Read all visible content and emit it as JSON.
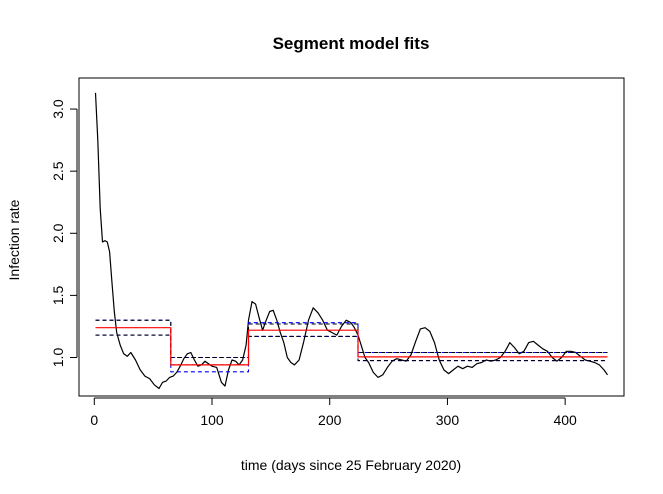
{
  "chart_data": {
    "type": "line",
    "title": "Segment model fits",
    "xlabel": "time (days since 25 February 2020)",
    "ylabel": "Infection rate",
    "xlim": [
      -13,
      450
    ],
    "ylim": [
      0.69,
      3.25
    ],
    "xticks": [
      "0",
      "100",
      "200",
      "300",
      "400"
    ],
    "yticks": [
      "1.0",
      "1.5",
      "2.0",
      "2.5",
      "3.0"
    ],
    "grid": false,
    "colors": {
      "observed": "#000000",
      "fit": "#ff0000",
      "interval": "#0000ff",
      "inner_interval": "#000000"
    },
    "series": [
      {
        "style": "solid-black",
        "x": [
          1,
          3,
          5,
          7,
          9,
          11,
          13,
          15,
          17,
          19,
          22,
          25,
          28,
          31,
          35,
          39,
          43,
          47,
          51,
          55,
          58,
          61,
          64,
          67,
          70,
          73,
          76,
          79,
          82,
          85,
          88,
          91,
          94,
          97,
          100,
          104,
          108,
          111,
          114,
          117,
          120,
          123,
          126,
          129,
          131,
          134,
          137,
          140,
          143,
          146,
          149,
          152,
          155,
          158,
          161,
          164,
          167,
          170,
          174,
          178,
          182,
          186,
          190,
          194,
          198,
          202,
          206,
          210,
          214,
          218,
          221,
          224,
          227,
          230,
          233,
          237,
          241,
          245,
          249,
          253,
          257,
          261,
          265,
          269,
          273,
          277,
          281,
          285,
          289,
          293,
          297,
          301,
          305,
          309,
          313,
          317,
          321,
          325,
          329,
          333,
          337,
          341,
          345,
          349,
          353,
          357,
          361,
          365,
          369,
          373,
          377,
          381,
          385,
          389,
          393,
          397,
          401,
          405,
          409,
          413,
          417,
          421,
          425,
          429,
          433,
          436
        ],
        "y": [
          3.13,
          2.75,
          2.2,
          1.93,
          1.94,
          1.93,
          1.85,
          1.6,
          1.37,
          1.2,
          1.1,
          1.03,
          1.01,
          1.04,
          0.98,
          0.9,
          0.85,
          0.83,
          0.78,
          0.75,
          0.8,
          0.81,
          0.84,
          0.85,
          0.88,
          0.93,
          0.99,
          1.03,
          1.04,
          0.98,
          0.93,
          0.94,
          0.97,
          0.95,
          0.93,
          0.92,
          0.8,
          0.77,
          0.9,
          0.98,
          0.97,
          0.94,
          0.98,
          1.1,
          1.3,
          1.45,
          1.43,
          1.32,
          1.22,
          1.3,
          1.37,
          1.38,
          1.3,
          1.2,
          1.12,
          1.0,
          0.96,
          0.94,
          0.98,
          1.13,
          1.3,
          1.4,
          1.36,
          1.3,
          1.22,
          1.2,
          1.18,
          1.25,
          1.3,
          1.28,
          1.24,
          1.18,
          1.09,
          1.0,
          0.96,
          0.88,
          0.84,
          0.86,
          0.92,
          0.97,
          0.99,
          0.98,
          0.97,
          1.02,
          1.13,
          1.23,
          1.24,
          1.21,
          1.12,
          0.98,
          0.9,
          0.87,
          0.9,
          0.93,
          0.91,
          0.93,
          0.92,
          0.95,
          0.96,
          0.98,
          0.97,
          0.98,
          1.0,
          1.05,
          1.12,
          1.08,
          1.03,
          1.05,
          1.12,
          1.13,
          1.1,
          1.07,
          1.05,
          1.0,
          0.97,
          1.0,
          1.05,
          1.05,
          1.04,
          1.01,
          0.98,
          0.97,
          0.96,
          0.94,
          0.9,
          0.86
        ]
      },
      {
        "style": "solid-red",
        "x": [
          1,
          65,
          65,
          131,
          131,
          224,
          224,
          436
        ],
        "y": [
          1.24,
          1.24,
          0.94,
          0.94,
          1.22,
          1.22,
          1.005,
          1.005
        ]
      },
      {
        "style": "dashed-blue",
        "x": [
          1,
          65,
          65,
          131,
          131,
          224,
          224,
          436
        ],
        "y": [
          1.3,
          1.3,
          0.885,
          0.885,
          1.28,
          1.28,
          0.975,
          0.975
        ]
      },
      {
        "style": "dashed-blue",
        "x": [
          1,
          65,
          65,
          131,
          131,
          224,
          224,
          436
        ],
        "y": [
          1.18,
          1.18,
          1.0,
          1.0,
          1.17,
          1.17,
          1.04,
          1.04
        ]
      },
      {
        "style": "dashed-black",
        "x": [
          1,
          65,
          65,
          131,
          131,
          224,
          224,
          436
        ],
        "y": [
          1.18,
          1.18,
          0.94,
          0.94,
          1.17,
          1.17,
          0.975,
          0.975
        ]
      },
      {
        "style": "dashed-black",
        "x": [
          1,
          65,
          65,
          131,
          131,
          224,
          224,
          436
        ],
        "y": [
          1.3,
          1.3,
          1.0,
          1.0,
          1.27,
          1.27,
          1.04,
          1.04
        ]
      }
    ]
  }
}
